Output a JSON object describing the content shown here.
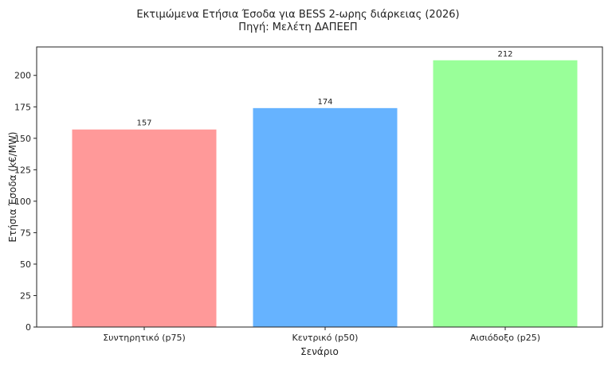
{
  "chart_data": {
    "type": "bar",
    "title": "Εκτιμώμενα Ετήσια Έσοδα για BESS 2-ωρης διάρκειας (2026)",
    "subtitle": "Πηγή: Μελέτη ΔΑΠΕΕΠ",
    "xlabel": "Σενάριο",
    "ylabel": "Ετήσια Έσοδα (k€/MW)",
    "categories": [
      "Συντηρητικό (p75)",
      "Κεντρικό (p50)",
      "Αισιόδοξο (p25)"
    ],
    "values": [
      157,
      174,
      212
    ],
    "data_labels": [
      "157",
      "174",
      "212"
    ],
    "colors": [
      "#ff9999",
      "#66b3ff",
      "#99ff99"
    ],
    "ylim": [
      0,
      222.6
    ],
    "yticks": [
      0,
      25,
      50,
      75,
      100,
      125,
      150,
      175,
      200
    ],
    "grid": false
  }
}
